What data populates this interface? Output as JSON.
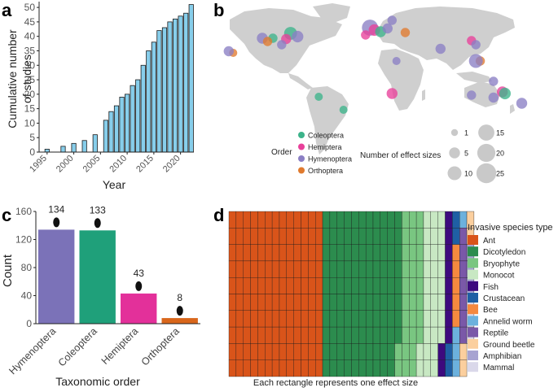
{
  "chart_data": [
    {
      "panel": "a",
      "type": "bar",
      "xlabel": "Year",
      "ylabel_lines": [
        "Cumulative number",
        "of studies"
      ],
      "categories": [
        1994,
        1995,
        1996,
        1997,
        1998,
        1999,
        2000,
        2001,
        2002,
        2003,
        2004,
        2005,
        2006,
        2007,
        2008,
        2009,
        2010,
        2011,
        2012,
        2013,
        2014,
        2015,
        2016,
        2017,
        2018,
        2019,
        2020,
        2021,
        2022
      ],
      "values": [
        0,
        1,
        0,
        0,
        2,
        0,
        3,
        0,
        4,
        0,
        6,
        0,
        11,
        14,
        16,
        19,
        20,
        23,
        25,
        30,
        35,
        38,
        42,
        43,
        45,
        46,
        47,
        48,
        51
      ],
      "xticks": [
        "1995",
        "2000",
        "2005",
        "2010",
        "2015",
        "2020"
      ],
      "xtick_years": [
        1995,
        2000,
        2005,
        2010,
        2015,
        2020
      ],
      "yticks": [
        "0",
        "5",
        "10",
        "15",
        "20",
        "25",
        "30",
        "35",
        "40",
        "45",
        "50"
      ],
      "ylim": [
        0,
        52
      ],
      "bar_color": "#87ceeb"
    },
    {
      "panel": "b",
      "type": "scatter",
      "legend_order_title": "Order",
      "orders": [
        {
          "name": "Coleoptera",
          "color": "#3cb38a"
        },
        {
          "name": "Hemiptera",
          "color": "#e8409a"
        },
        {
          "name": "Hymenoptera",
          "color": "#8b7fc4"
        },
        {
          "name": "Orthoptera",
          "color": "#e07a2e"
        }
      ],
      "legend_size_title": "Number of effect sizes",
      "size_values": [
        1,
        5,
        10,
        15,
        20,
        25
      ],
      "points": [
        {
          "lon": -90,
          "lat": 44,
          "order": "Coleoptera",
          "n": 8
        },
        {
          "lon": -82,
          "lat": 40,
          "order": "Hymenoptera",
          "n": 6
        },
        {
          "lon": -95,
          "lat": 37,
          "order": "Hemiptera",
          "n": 4
        },
        {
          "lon": -110,
          "lat": 38,
          "order": "Coleoptera",
          "n": 3
        },
        {
          "lon": -122,
          "lat": 38,
          "order": "Hymenoptera",
          "n": 5
        },
        {
          "lon": -116,
          "lat": 34,
          "order": "Orthoptera",
          "n": 3
        },
        {
          "lon": -100,
          "lat": 30,
          "order": "Hymenoptera",
          "n": 3
        },
        {
          "lon": -155,
          "lat": 20,
          "order": "Orthoptera",
          "n": 2
        },
        {
          "lon": -160,
          "lat": 22,
          "order": "Hymenoptera",
          "n": 4
        },
        {
          "lon": -58,
          "lat": -34,
          "order": "Coleoptera",
          "n": 2
        },
        {
          "lon": -30,
          "lat": -50,
          "order": "Coleoptera",
          "n": 2
        },
        {
          "lon": 0,
          "lat": 51,
          "order": "Hymenoptera",
          "n": 15
        },
        {
          "lon": 5,
          "lat": 48,
          "order": "Hemiptera",
          "n": 6
        },
        {
          "lon": 12,
          "lat": 46,
          "order": "Coleoptera",
          "n": 5
        },
        {
          "lon": -5,
          "lat": 42,
          "order": "Hemiptera",
          "n": 3
        },
        {
          "lon": 20,
          "lat": 50,
          "order": "Hymenoptera",
          "n": 4
        },
        {
          "lon": 25,
          "lat": 60,
          "order": "Hymenoptera",
          "n": 3
        },
        {
          "lon": 40,
          "lat": 45,
          "order": "Orthoptera",
          "n": 3
        },
        {
          "lon": 30,
          "lat": 10,
          "order": "Hymenoptera",
          "n": 2
        },
        {
          "lon": 25,
          "lat": -30,
          "order": "Hemiptera",
          "n": 5
        },
        {
          "lon": 80,
          "lat": 25,
          "order": "Hymenoptera",
          "n": 4
        },
        {
          "lon": 115,
          "lat": 35,
          "order": "Hemiptera",
          "n": 3
        },
        {
          "lon": 120,
          "lat": 30,
          "order": "Hymenoptera",
          "n": 3
        },
        {
          "lon": 125,
          "lat": 10,
          "order": "Orthoptera",
          "n": 3
        },
        {
          "lon": 120,
          "lat": 10,
          "order": "Hymenoptera",
          "n": 10
        },
        {
          "lon": 150,
          "lat": -28,
          "order": "Hemiptera",
          "n": 5
        },
        {
          "lon": 140,
          "lat": -15,
          "order": "Hymenoptera",
          "n": 3
        },
        {
          "lon": 115,
          "lat": -32,
          "order": "Hymenoptera",
          "n": 3
        },
        {
          "lon": 153,
          "lat": -30,
          "order": "Coleoptera",
          "n": 6
        },
        {
          "lon": 140,
          "lat": -35,
          "order": "Hymenoptera",
          "n": 4
        },
        {
          "lon": 172,
          "lat": -42,
          "order": "Hymenoptera",
          "n": 5
        }
      ]
    },
    {
      "panel": "c",
      "type": "bar",
      "xlabel": "Taxonomic order",
      "ylabel": "Count",
      "categories": [
        "Hymenoptera",
        "Coleoptera",
        "Hemiptera",
        "Orthoptera"
      ],
      "values": [
        134,
        133,
        43,
        8
      ],
      "data_labels": [
        "134",
        "133",
        "43",
        "8"
      ],
      "colors": [
        "#7b72b8",
        "#1fa07a",
        "#e3309a",
        "#d9661b"
      ],
      "yticks": [
        "0",
        "40",
        "80",
        "120",
        "160"
      ],
      "ylim": [
        0,
        160
      ]
    },
    {
      "panel": "d",
      "type": "waffle",
      "caption": "Each rectangle represents one effect size",
      "legend_title": "Invasive species type",
      "categories": [
        {
          "name": "Ant",
          "color": "#d9541a",
          "count": 130
        },
        {
          "name": "Dicotyledon",
          "color": "#2c8c4e",
          "count": 108
        },
        {
          "name": "Bryophyte",
          "color": "#79c681",
          "count": 30
        },
        {
          "name": "Monocot",
          "color": "#c8e8c3",
          "count": 30
        },
        {
          "name": "Fish",
          "color": "#3d0a7e",
          "count": 10
        },
        {
          "name": "Crustacean",
          "color": "#1f5fa4",
          "count": 4
        },
        {
          "name": "Bee",
          "color": "#f5893f",
          "count": 5
        },
        {
          "name": "Annelid worm",
          "color": "#6cb1dd",
          "count": 4
        },
        {
          "name": "Reptile",
          "color": "#7a58a8",
          "count": 7
        },
        {
          "name": "Ground beetle",
          "color": "#fbcf9e",
          "count": 4
        },
        {
          "name": "Amphibian",
          "color": "#a7a3d1",
          "count": 3
        },
        {
          "name": "Mammal",
          "color": "#dad8ea",
          "count": 3
        }
      ]
    }
  ],
  "panel_labels": {
    "a": "a",
    "b": "b",
    "c": "c",
    "d": "d"
  }
}
